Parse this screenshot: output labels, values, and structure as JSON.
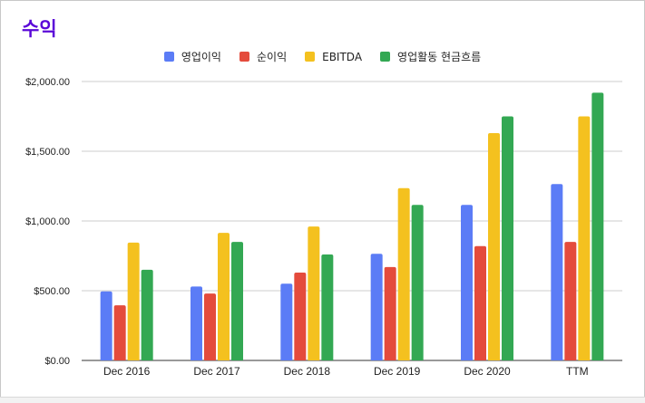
{
  "title": "수익",
  "colors": {
    "title": "#5a07d8",
    "gridline": "#cccccc",
    "axis": "#333333"
  },
  "chart_data": {
    "type": "bar",
    "title": "수익",
    "categories": [
      "Dec 2016",
      "Dec 2017",
      "Dec 2018",
      "Dec 2019",
      "Dec 2020",
      "TTM"
    ],
    "series": [
      {
        "name": "영업이익",
        "color": "#5b7cf6",
        "values": [
          495,
          530,
          550,
          765,
          1115,
          1265
        ]
      },
      {
        "name": "순이익",
        "color": "#e44b3c",
        "values": [
          395,
          480,
          630,
          670,
          820,
          850
        ]
      },
      {
        "name": "EBITDA",
        "color": "#f4c11f",
        "values": [
          845,
          915,
          960,
          1235,
          1630,
          1750
        ]
      },
      {
        "name": "영업활동 현금흐름",
        "color": "#33a853",
        "values": [
          650,
          850,
          760,
          1115,
          1750,
          1920
        ]
      }
    ],
    "ylim": [
      0,
      2000
    ],
    "yticks": [
      "$0.00",
      "$500.00",
      "$1,000.00",
      "$1,500.00",
      "$2,000.00"
    ],
    "ytick_values": [
      0,
      500,
      1000,
      1500,
      2000
    ],
    "legend_position": "top-center",
    "grid": true
  }
}
